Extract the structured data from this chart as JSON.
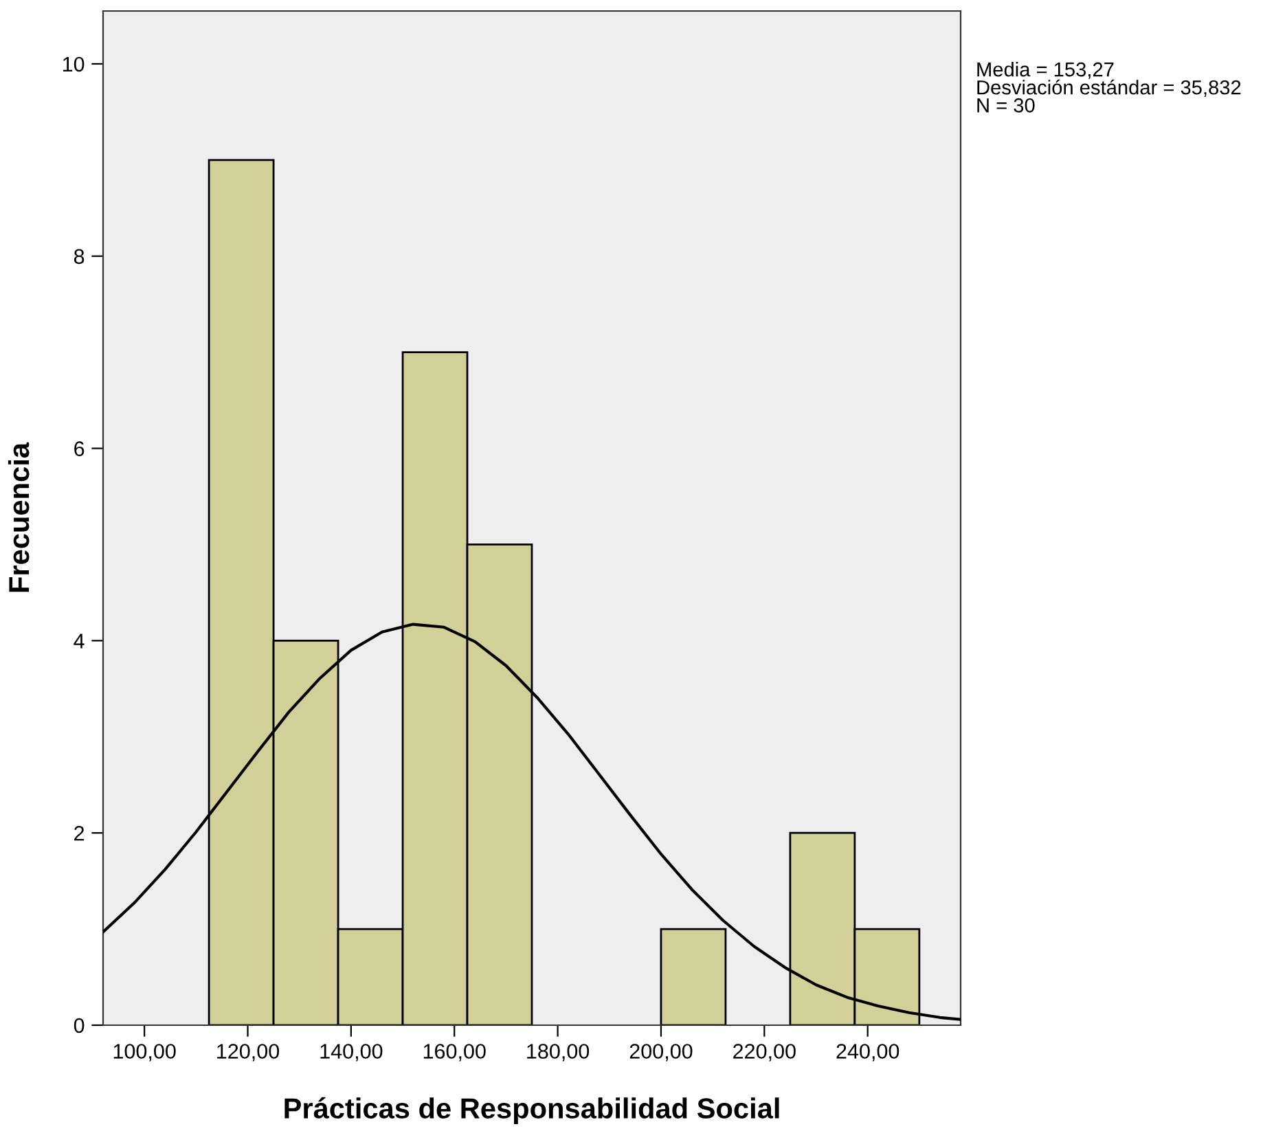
{
  "chart_data": {
    "type": "histogram",
    "xlabel": "Prácticas de Responsabilidad Social",
    "ylabel": "Frecuencia",
    "bins": [
      112.5,
      125,
      137.5,
      150,
      162.5,
      175,
      187.5,
      200,
      212.5,
      225,
      237.5,
      250
    ],
    "values": [
      9,
      4,
      1,
      7,
      5,
      0,
      0,
      1,
      0,
      2,
      1
    ],
    "color": "#d3cf98",
    "series": [
      {
        "type": "line",
        "color": "#000000",
        "x": [
          92,
          98,
          104,
          110,
          116,
          122,
          128,
          134,
          140,
          146,
          152,
          158,
          164,
          170,
          176,
          182,
          188,
          194,
          200,
          206,
          212,
          218,
          224,
          230,
          236,
          242,
          248,
          254,
          258
        ],
        "values": [
          0.97,
          1.27,
          1.62,
          2.01,
          2.43,
          2.85,
          3.26,
          3.61,
          3.9,
          4.09,
          4.17,
          4.14,
          3.99,
          3.74,
          3.41,
          3.03,
          2.61,
          2.19,
          1.78,
          1.41,
          1.09,
          0.82,
          0.6,
          0.42,
          0.29,
          0.2,
          0.13,
          0.08,
          0.06
        ]
      }
    ],
    "xlim": [
      92,
      258
    ],
    "ylim": [
      0,
      10.55
    ],
    "xticks": [
      {
        "value": 100,
        "label": "100,00"
      },
      {
        "value": 120,
        "label": "120,00"
      },
      {
        "value": 140,
        "label": "140,00"
      },
      {
        "value": 160,
        "label": "160,00"
      },
      {
        "value": 180,
        "label": "180,00"
      },
      {
        "value": 200,
        "label": "200,00"
      },
      {
        "value": 220,
        "label": "220,00"
      },
      {
        "value": 240,
        "label": "240,00"
      }
    ],
    "yticks": [
      0,
      2,
      4,
      6,
      8,
      10
    ],
    "annotations": [
      "Media = 153,27\nDesviación estándar = 35,832\nN = 30"
    ],
    "grid": false,
    "legend": false
  }
}
